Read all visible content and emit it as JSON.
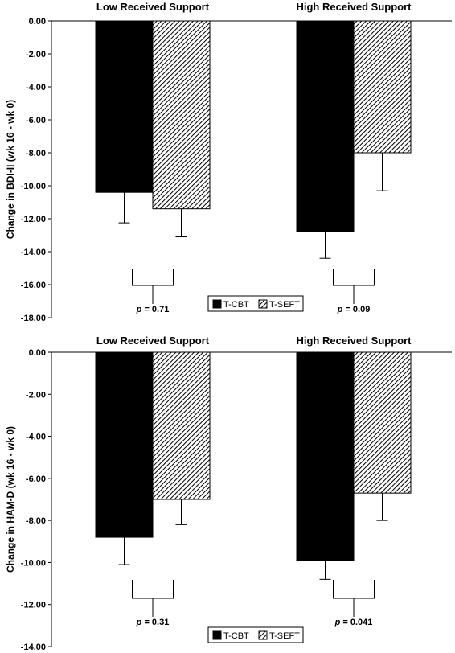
{
  "colors": {
    "tcbt": "#000000",
    "tseft_hatch": "#000000",
    "background": "#ffffff"
  },
  "chart_data": [
    {
      "type": "bar",
      "ylabel": "Change in BDI-II (wk 16 - wk 0)",
      "ylim": [
        -18,
        0
      ],
      "yticks": [
        "0.00",
        "-2.00",
        "-4.00",
        "-6.00",
        "-8.00",
        "-10.00",
        "-12.00",
        "-14.00",
        "-16.00",
        "-18.00"
      ],
      "categories": [
        "Low Received Support",
        "High Received Support"
      ],
      "series": [
        {
          "name": "T-CBT",
          "values": [
            -10.4,
            -12.8
          ],
          "errors": [
            1.85,
            1.6
          ],
          "fill": "solid"
        },
        {
          "name": "T-SEFT",
          "values": [
            -11.4,
            -8.0
          ],
          "errors": [
            1.7,
            2.3
          ],
          "fill": "hatch"
        }
      ],
      "pvalues": [
        {
          "prefix": "p",
          "text": " = 0.71"
        },
        {
          "prefix": "p",
          "text": " = 0.09"
        }
      ],
      "legend": "bottom-center",
      "grid": false
    },
    {
      "type": "bar",
      "ylabel": "Change in HAM-D (wk 16 - wk 0)",
      "ylim": [
        -14,
        0
      ],
      "yticks": [
        "0.00",
        "-2.00",
        "-4.00",
        "-6.00",
        "-8.00",
        "-10.00",
        "-12.00",
        "-14.00"
      ],
      "categories": [
        "Low Received Support",
        "High Received Support"
      ],
      "series": [
        {
          "name": "T-CBT",
          "values": [
            -8.8,
            -9.9
          ],
          "errors": [
            1.3,
            0.9
          ],
          "fill": "solid"
        },
        {
          "name": "T-SEFT",
          "values": [
            -7.0,
            -6.7
          ],
          "errors": [
            1.2,
            1.3
          ],
          "fill": "hatch"
        }
      ],
      "pvalues": [
        {
          "prefix": "p",
          "text": " = 0.31"
        },
        {
          "prefix": "p",
          "text": " = 0.041"
        }
      ],
      "legend": "bottom-center",
      "grid": false
    }
  ]
}
